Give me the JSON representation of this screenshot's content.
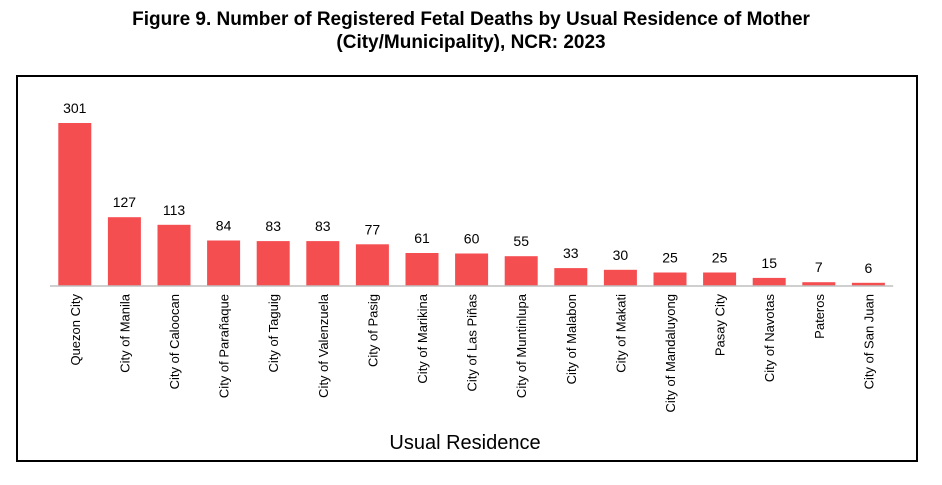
{
  "chart_data": {
    "type": "bar",
    "title_line1": "Figure 9. Number of Registered Fetal Deaths by Usual Residence of Mother",
    "title_line2": "(City/Municipality), NCR: 2023",
    "xlabel": "Usual Residence",
    "ylabel": "",
    "categories": [
      "Quezon City",
      "City of Manila",
      "City of Caloocan",
      "City of Parañaque",
      "City of Taguig",
      "City of Valenzuela",
      "City of Pasig",
      "City of Marikina",
      "City of Las Piñas",
      "City of Muntinlupa",
      "City of Malabon",
      "City of Makati",
      "City of Mandaluyong",
      "Pasay City",
      "City of Navotas",
      "Pateros",
      "City of San Juan"
    ],
    "values": [
      301,
      127,
      113,
      84,
      83,
      83,
      77,
      61,
      60,
      55,
      33,
      30,
      25,
      25,
      15,
      7,
      6
    ],
    "ylim": [
      0,
      301
    ],
    "grid": false,
    "legend": "none",
    "bar_color": "#f54e51",
    "axis_color": "#bfbfbf"
  }
}
